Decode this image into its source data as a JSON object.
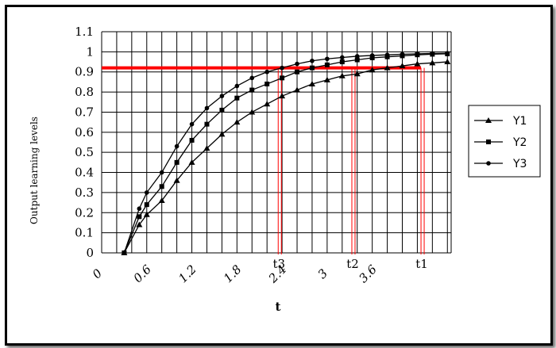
{
  "chart_data": {
    "type": "line",
    "title": "",
    "xlabel": "t",
    "ylabel": "Output learning levels",
    "xlim": [
      0,
      4.65
    ],
    "ylim": [
      0,
      1.1
    ],
    "grid": true,
    "x_ticks": [
      "0",
      "0.6",
      "1.2",
      "1.8",
      "2.4",
      "3",
      "3.6"
    ],
    "y_ticks": [
      "0",
      "0.1",
      "0.2",
      "0.3",
      "0.4",
      "0.5",
      "0.6",
      "0.7",
      "0.8",
      "0.9",
      "1",
      "1.1"
    ],
    "legend_position": "right",
    "x": [
      0.3,
      0.5,
      0.6,
      0.8,
      1.0,
      1.2,
      1.4,
      1.6,
      1.8,
      2.0,
      2.2,
      2.4,
      2.6,
      2.8,
      3.0,
      3.2,
      3.4,
      3.6,
      3.8,
      4.0,
      4.2,
      4.4,
      4.6
    ],
    "series": [
      {
        "name": "Y1",
        "marker": "triangle",
        "values": [
          0.0,
          0.14,
          0.19,
          0.26,
          0.36,
          0.45,
          0.52,
          0.59,
          0.65,
          0.7,
          0.74,
          0.78,
          0.81,
          0.84,
          0.86,
          0.88,
          0.89,
          0.91,
          0.92,
          0.93,
          0.94,
          0.945,
          0.95
        ]
      },
      {
        "name": "Y2",
        "marker": "square",
        "values": [
          0.0,
          0.18,
          0.24,
          0.33,
          0.45,
          0.56,
          0.64,
          0.71,
          0.77,
          0.81,
          0.84,
          0.87,
          0.9,
          0.92,
          0.935,
          0.95,
          0.96,
          0.97,
          0.975,
          0.98,
          0.985,
          0.988,
          0.99
        ]
      },
      {
        "name": "Y3",
        "marker": "circle",
        "values": [
          0.0,
          0.22,
          0.3,
          0.4,
          0.53,
          0.64,
          0.72,
          0.78,
          0.83,
          0.87,
          0.9,
          0.92,
          0.94,
          0.955,
          0.965,
          0.972,
          0.978,
          0.982,
          0.985,
          0.988,
          0.99,
          0.992,
          0.993
        ]
      }
    ],
    "threshold": {
      "y": 0.92,
      "color": "#ff0000"
    },
    "markers_x": [
      {
        "label": "t3",
        "x": 2.37
      },
      {
        "label": "t2",
        "x": 3.35
      },
      {
        "label": "t1",
        "x": 4.27
      }
    ],
    "colors": {
      "lines": "#000000",
      "threshold": "#ff0000",
      "marker_lines": "#ff0000"
    }
  }
}
